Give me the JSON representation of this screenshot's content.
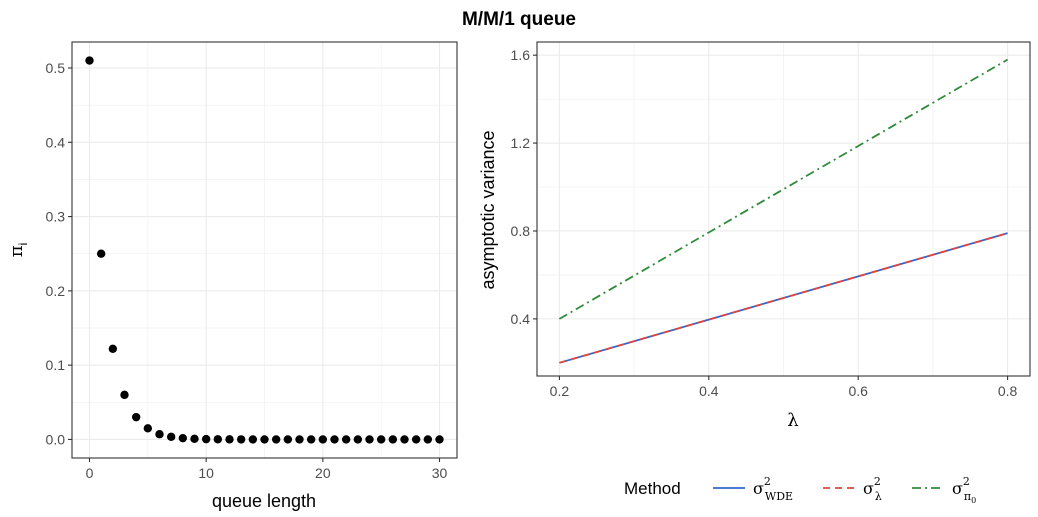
{
  "title": "M/M/1 queue",
  "chart_data": [
    {
      "type": "scatter",
      "xlabel": "queue length",
      "ylabel_symbol": "π",
      "ylabel_subscript": "i",
      "xlim": [
        -1.5,
        31.5
      ],
      "ylim": [
        -0.025,
        0.535
      ],
      "x_ticks": [
        0,
        10,
        20,
        30
      ],
      "y_ticks": [
        0.0,
        0.1,
        0.2,
        0.3,
        0.4,
        0.5
      ],
      "y_tick_labels": [
        "0.0",
        "0.1",
        "0.2",
        "0.3",
        "0.4",
        "0.5"
      ],
      "grid": true,
      "point_color": "#000000",
      "x": [
        0,
        1,
        2,
        3,
        4,
        5,
        6,
        7,
        8,
        9,
        10,
        11,
        12,
        13,
        14,
        15,
        16,
        17,
        18,
        19,
        20,
        21,
        22,
        23,
        24,
        25,
        26,
        27,
        28,
        29,
        30
      ],
      "y": [
        0.51,
        0.25,
        0.122,
        0.06,
        0.03,
        0.015,
        0.007,
        0.0035,
        0.0017,
        0.0008,
        0.0004,
        0.0002,
        0.0001,
        5e-05,
        2e-05,
        1e-05,
        0,
        0,
        0,
        0,
        0,
        0,
        0,
        0,
        0,
        0,
        0,
        0,
        0,
        0,
        0
      ]
    },
    {
      "type": "line",
      "xlabel": "λ",
      "ylabel": "asymptotic variance",
      "xlim": [
        0.17,
        0.83
      ],
      "ylim": [
        0.14,
        1.66
      ],
      "x_ticks": [
        0.2,
        0.4,
        0.6,
        0.8
      ],
      "x_tick_labels": [
        "0.2",
        "0.4",
        "0.6",
        "0.8"
      ],
      "y_ticks": [
        0.4,
        0.8,
        1.2,
        1.6
      ],
      "y_tick_labels": [
        "0.4",
        "0.8",
        "1.2",
        "1.6"
      ],
      "grid": true,
      "legend_title": "Method",
      "legend_position": "bottom",
      "series": [
        {
          "name": "σ²WDE",
          "symbol": "σ",
          "sup": "2",
          "sub": "WDE",
          "color": "#3366cc",
          "dash": "none",
          "x": [
            0.2,
            0.8
          ],
          "y": [
            0.2,
            0.79
          ]
        },
        {
          "name": "σ²λ",
          "symbol": "σ",
          "sup": "2",
          "sub": "λ",
          "color": "#e0443a",
          "dash": "7,5",
          "x": [
            0.2,
            0.8
          ],
          "y": [
            0.2,
            0.79
          ]
        },
        {
          "name": "σ²π0",
          "symbol": "σ",
          "sup": "2",
          "sub": "π",
          "subsub": "0",
          "color": "#2e8b3a",
          "dash": "9,4,2,4",
          "x": [
            0.2,
            0.8
          ],
          "y": [
            0.4,
            1.58
          ]
        }
      ]
    }
  ]
}
